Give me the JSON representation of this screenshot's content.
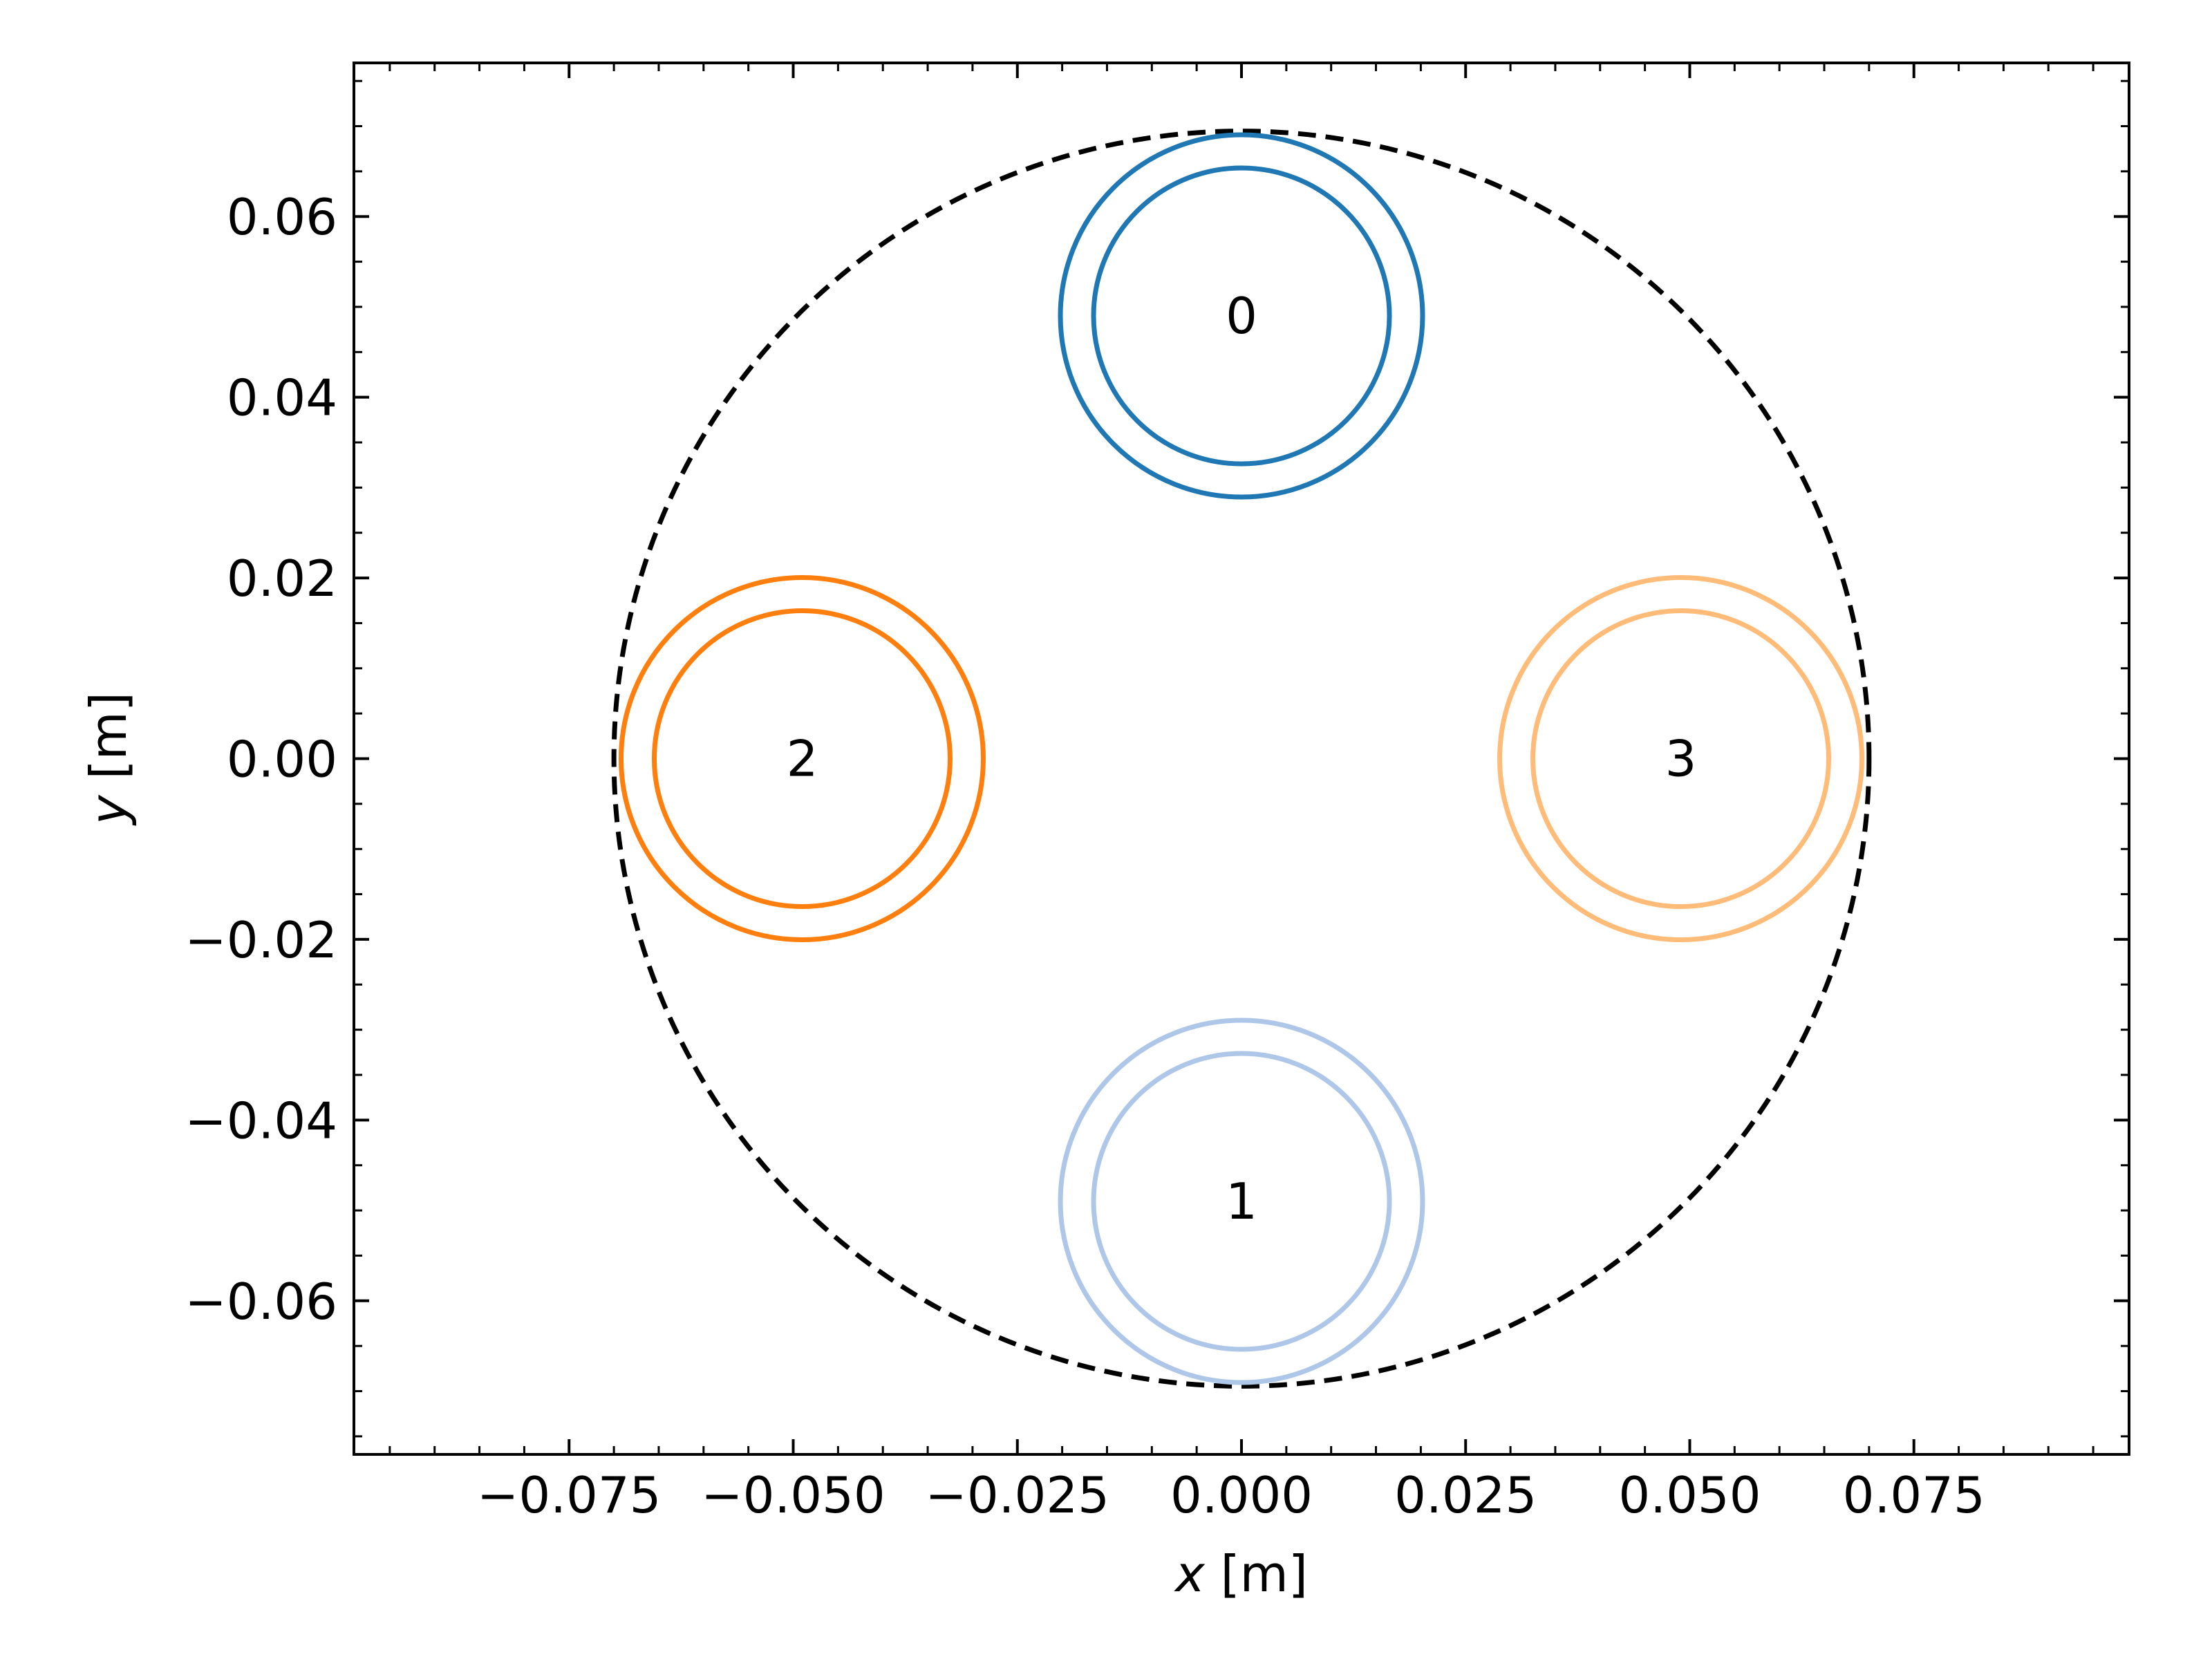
{
  "chart_data": {
    "type": "scatter",
    "title": "",
    "xlabel": {
      "var": "x",
      "unit": " [m]"
    },
    "ylabel": {
      "var": "y",
      "unit": " [m]"
    },
    "xlim": [
      -0.099,
      0.099
    ],
    "ylim": [
      -0.077,
      0.077
    ],
    "x_ticks": [
      -0.075,
      -0.05,
      -0.025,
      0.0,
      0.025,
      0.05,
      0.075
    ],
    "x_tick_labels": [
      "−0.075",
      "−0.050",
      "−0.025",
      "0.000",
      "0.025",
      "0.050",
      "0.075"
    ],
    "y_ticks": [
      -0.06,
      -0.04,
      -0.02,
      0.0,
      0.02,
      0.04,
      0.06
    ],
    "y_tick_labels": [
      "−0.06",
      "−0.04",
      "−0.02",
      "0.00",
      "0.02",
      "0.04",
      "0.06"
    ],
    "minor_tick_step": 0.005,
    "ticks_direction": "in",
    "grid": false,
    "boundary_circle": {
      "center": [
        0.0,
        0.0
      ],
      "radius": 0.07,
      "style": "dashed",
      "color": "#000000"
    },
    "conductors": [
      {
        "label": "0",
        "center": [
          0.0,
          0.049
        ],
        "outer_radius": 0.0202,
        "inner_radius": 0.0165,
        "color": "#1f77b4"
      },
      {
        "label": "1",
        "center": [
          0.0,
          -0.049
        ],
        "outer_radius": 0.0202,
        "inner_radius": 0.0165,
        "color": "#aec7e8"
      },
      {
        "label": "2",
        "center": [
          -0.049,
          0.0
        ],
        "outer_radius": 0.0202,
        "inner_radius": 0.0165,
        "color": "#ff7f0e"
      },
      {
        "label": "3",
        "center": [
          0.049,
          0.0
        ],
        "outer_radius": 0.0202,
        "inner_radius": 0.0165,
        "color": "#ffbb78"
      }
    ]
  }
}
